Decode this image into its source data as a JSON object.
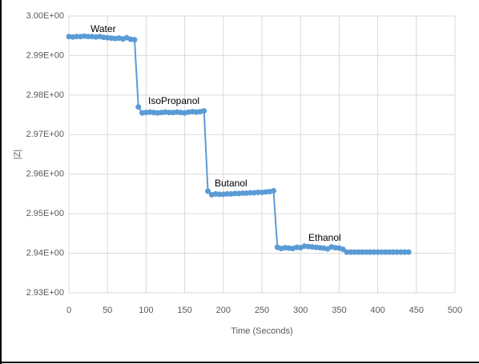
{
  "chart_data": {
    "type": "line",
    "y_label": "|Z|",
    "x_label": "Time (Seconds)",
    "annotations": [
      "Water",
      "IsoPropanol",
      "Butanol",
      "Ethanol"
    ],
    "color": "#5b9bd5",
    "grid": true,
    "xlim": [
      0,
      500
    ],
    "xticks": [
      0,
      50,
      100,
      150,
      200,
      250,
      300,
      350,
      400,
      450,
      500
    ],
    "ylim": [
      2.93,
      3.0
    ],
    "yticks": [
      {
        "value": 2.93,
        "label": "2.93E+00"
      },
      {
        "value": 2.94,
        "label": "2.94E+00"
      },
      {
        "value": 2.95,
        "label": "2.95E+00"
      },
      {
        "value": 2.96,
        "label": "2.96E+00"
      },
      {
        "value": 2.97,
        "label": "2.97E+00"
      },
      {
        "value": 2.98,
        "label": "2.98E+00"
      },
      {
        "value": 2.99,
        "label": "2.99E+00"
      },
      {
        "value": 3.0,
        "label": "3.00E+00"
      }
    ],
    "x": [
      0,
      5,
      10,
      15,
      20,
      25,
      30,
      35,
      40,
      45,
      50,
      55,
      60,
      65,
      70,
      75,
      80,
      85,
      90,
      95,
      100,
      105,
      110,
      115,
      120,
      125,
      130,
      135,
      140,
      145,
      150,
      155,
      160,
      165,
      170,
      175,
      180,
      185,
      190,
      195,
      200,
      205,
      210,
      215,
      220,
      225,
      230,
      235,
      240,
      245,
      250,
      255,
      260,
      265,
      270,
      275,
      280,
      285,
      290,
      295,
      300,
      305,
      310,
      315,
      320,
      325,
      330,
      335,
      340,
      345,
      350,
      355,
      360,
      365,
      370,
      375,
      380,
      385,
      390,
      395,
      400,
      405,
      410,
      415,
      420,
      425,
      430,
      435,
      440
    ],
    "values": [
      2.9948,
      2.9947,
      2.9948,
      2.9948,
      2.9949,
      2.9948,
      2.9948,
      2.9947,
      2.9948,
      2.9946,
      2.9945,
      2.9944,
      2.9943,
      2.9944,
      2.9942,
      2.9945,
      2.9941,
      2.994,
      2.977,
      2.9755,
      2.9756,
      2.9757,
      2.9756,
      2.9755,
      2.9756,
      2.9757,
      2.9756,
      2.9756,
      2.9757,
      2.9756,
      2.9755,
      2.9757,
      2.9758,
      2.9757,
      2.9758,
      2.976,
      2.9557,
      2.9548,
      2.955,
      2.9549,
      2.9549,
      2.955,
      2.955,
      2.9551,
      2.9551,
      2.9552,
      2.9552,
      2.9553,
      2.9553,
      2.9554,
      2.9554,
      2.9555,
      2.9556,
      2.9558,
      2.9415,
      2.9412,
      2.9414,
      2.9413,
      2.9412,
      2.9415,
      2.9414,
      2.9418,
      2.9417,
      2.9416,
      2.9415,
      2.9414,
      2.9413,
      2.9411,
      2.9416,
      2.9414,
      2.9413,
      2.941,
      2.9403,
      2.9403,
      2.9403,
      2.9403,
      2.9403,
      2.9403,
      2.9403,
      2.9403,
      2.9403,
      2.9403,
      2.9403,
      2.9403,
      2.9403,
      2.9403,
      2.9403,
      2.9403,
      2.9403
    ]
  }
}
